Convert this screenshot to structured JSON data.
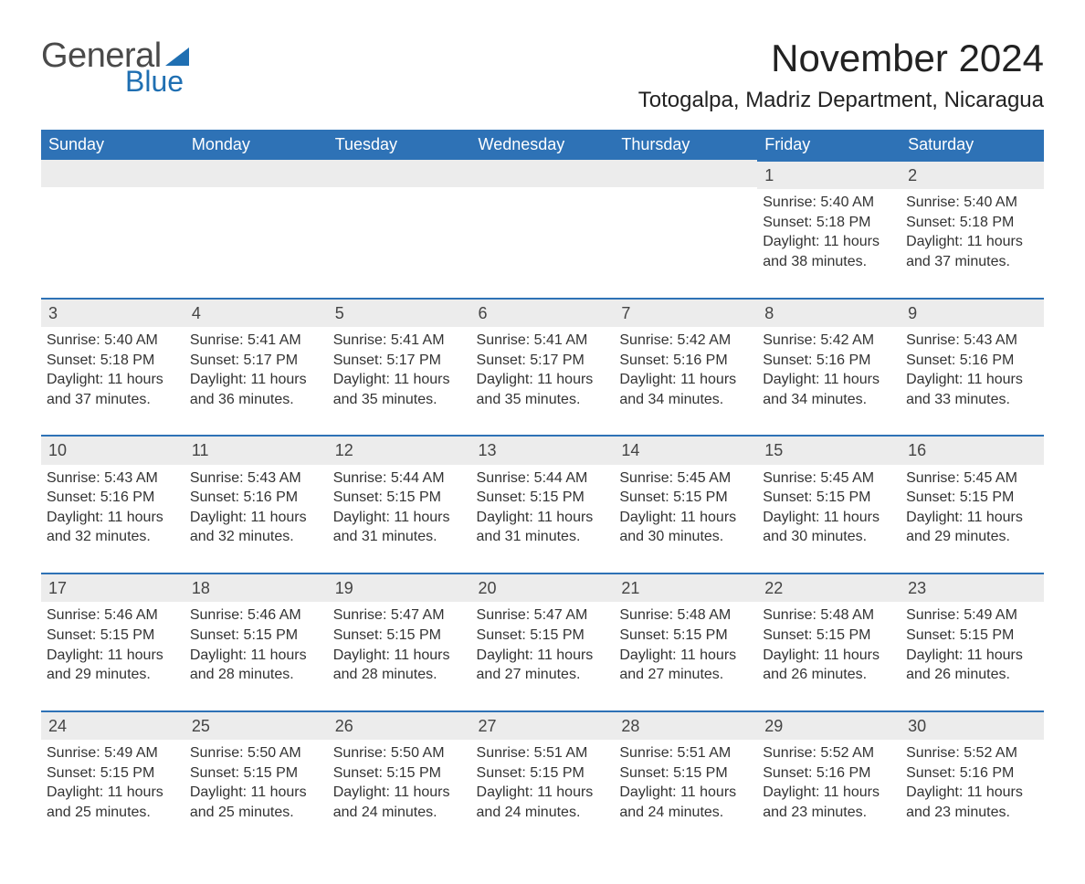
{
  "brand": {
    "text1": "General",
    "text2": "Blue",
    "flag_color": "#1f6fb2"
  },
  "title": "November 2024",
  "location": "Totogalpa, Madriz Department, Nicaragua",
  "colors": {
    "header_bg": "#2e72b6",
    "header_text": "#ffffff",
    "daynum_bg": "#ececec",
    "daynum_border": "#2e72b6",
    "body_text": "#333333",
    "page_bg": "#ffffff"
  },
  "day_headers": [
    "Sunday",
    "Monday",
    "Tuesday",
    "Wednesday",
    "Thursday",
    "Friday",
    "Saturday"
  ],
  "weeks": [
    [
      {
        "day": null
      },
      {
        "day": null
      },
      {
        "day": null
      },
      {
        "day": null
      },
      {
        "day": null
      },
      {
        "day": "1",
        "sunrise": "Sunrise: 5:40 AM",
        "sunset": "Sunset: 5:18 PM",
        "daylight1": "Daylight: 11 hours",
        "daylight2": "and 38 minutes."
      },
      {
        "day": "2",
        "sunrise": "Sunrise: 5:40 AM",
        "sunset": "Sunset: 5:18 PM",
        "daylight1": "Daylight: 11 hours",
        "daylight2": "and 37 minutes."
      }
    ],
    [
      {
        "day": "3",
        "sunrise": "Sunrise: 5:40 AM",
        "sunset": "Sunset: 5:18 PM",
        "daylight1": "Daylight: 11 hours",
        "daylight2": "and 37 minutes."
      },
      {
        "day": "4",
        "sunrise": "Sunrise: 5:41 AM",
        "sunset": "Sunset: 5:17 PM",
        "daylight1": "Daylight: 11 hours",
        "daylight2": "and 36 minutes."
      },
      {
        "day": "5",
        "sunrise": "Sunrise: 5:41 AM",
        "sunset": "Sunset: 5:17 PM",
        "daylight1": "Daylight: 11 hours",
        "daylight2": "and 35 minutes."
      },
      {
        "day": "6",
        "sunrise": "Sunrise: 5:41 AM",
        "sunset": "Sunset: 5:17 PM",
        "daylight1": "Daylight: 11 hours",
        "daylight2": "and 35 minutes."
      },
      {
        "day": "7",
        "sunrise": "Sunrise: 5:42 AM",
        "sunset": "Sunset: 5:16 PM",
        "daylight1": "Daylight: 11 hours",
        "daylight2": "and 34 minutes."
      },
      {
        "day": "8",
        "sunrise": "Sunrise: 5:42 AM",
        "sunset": "Sunset: 5:16 PM",
        "daylight1": "Daylight: 11 hours",
        "daylight2": "and 34 minutes."
      },
      {
        "day": "9",
        "sunrise": "Sunrise: 5:43 AM",
        "sunset": "Sunset: 5:16 PM",
        "daylight1": "Daylight: 11 hours",
        "daylight2": "and 33 minutes."
      }
    ],
    [
      {
        "day": "10",
        "sunrise": "Sunrise: 5:43 AM",
        "sunset": "Sunset: 5:16 PM",
        "daylight1": "Daylight: 11 hours",
        "daylight2": "and 32 minutes."
      },
      {
        "day": "11",
        "sunrise": "Sunrise: 5:43 AM",
        "sunset": "Sunset: 5:16 PM",
        "daylight1": "Daylight: 11 hours",
        "daylight2": "and 32 minutes."
      },
      {
        "day": "12",
        "sunrise": "Sunrise: 5:44 AM",
        "sunset": "Sunset: 5:15 PM",
        "daylight1": "Daylight: 11 hours",
        "daylight2": "and 31 minutes."
      },
      {
        "day": "13",
        "sunrise": "Sunrise: 5:44 AM",
        "sunset": "Sunset: 5:15 PM",
        "daylight1": "Daylight: 11 hours",
        "daylight2": "and 31 minutes."
      },
      {
        "day": "14",
        "sunrise": "Sunrise: 5:45 AM",
        "sunset": "Sunset: 5:15 PM",
        "daylight1": "Daylight: 11 hours",
        "daylight2": "and 30 minutes."
      },
      {
        "day": "15",
        "sunrise": "Sunrise: 5:45 AM",
        "sunset": "Sunset: 5:15 PM",
        "daylight1": "Daylight: 11 hours",
        "daylight2": "and 30 minutes."
      },
      {
        "day": "16",
        "sunrise": "Sunrise: 5:45 AM",
        "sunset": "Sunset: 5:15 PM",
        "daylight1": "Daylight: 11 hours",
        "daylight2": "and 29 minutes."
      }
    ],
    [
      {
        "day": "17",
        "sunrise": "Sunrise: 5:46 AM",
        "sunset": "Sunset: 5:15 PM",
        "daylight1": "Daylight: 11 hours",
        "daylight2": "and 29 minutes."
      },
      {
        "day": "18",
        "sunrise": "Sunrise: 5:46 AM",
        "sunset": "Sunset: 5:15 PM",
        "daylight1": "Daylight: 11 hours",
        "daylight2": "and 28 minutes."
      },
      {
        "day": "19",
        "sunrise": "Sunrise: 5:47 AM",
        "sunset": "Sunset: 5:15 PM",
        "daylight1": "Daylight: 11 hours",
        "daylight2": "and 28 minutes."
      },
      {
        "day": "20",
        "sunrise": "Sunrise: 5:47 AM",
        "sunset": "Sunset: 5:15 PM",
        "daylight1": "Daylight: 11 hours",
        "daylight2": "and 27 minutes."
      },
      {
        "day": "21",
        "sunrise": "Sunrise: 5:48 AM",
        "sunset": "Sunset: 5:15 PM",
        "daylight1": "Daylight: 11 hours",
        "daylight2": "and 27 minutes."
      },
      {
        "day": "22",
        "sunrise": "Sunrise: 5:48 AM",
        "sunset": "Sunset: 5:15 PM",
        "daylight1": "Daylight: 11 hours",
        "daylight2": "and 26 minutes."
      },
      {
        "day": "23",
        "sunrise": "Sunrise: 5:49 AM",
        "sunset": "Sunset: 5:15 PM",
        "daylight1": "Daylight: 11 hours",
        "daylight2": "and 26 minutes."
      }
    ],
    [
      {
        "day": "24",
        "sunrise": "Sunrise: 5:49 AM",
        "sunset": "Sunset: 5:15 PM",
        "daylight1": "Daylight: 11 hours",
        "daylight2": "and 25 minutes."
      },
      {
        "day": "25",
        "sunrise": "Sunrise: 5:50 AM",
        "sunset": "Sunset: 5:15 PM",
        "daylight1": "Daylight: 11 hours",
        "daylight2": "and 25 minutes."
      },
      {
        "day": "26",
        "sunrise": "Sunrise: 5:50 AM",
        "sunset": "Sunset: 5:15 PM",
        "daylight1": "Daylight: 11 hours",
        "daylight2": "and 24 minutes."
      },
      {
        "day": "27",
        "sunrise": "Sunrise: 5:51 AM",
        "sunset": "Sunset: 5:15 PM",
        "daylight1": "Daylight: 11 hours",
        "daylight2": "and 24 minutes."
      },
      {
        "day": "28",
        "sunrise": "Sunrise: 5:51 AM",
        "sunset": "Sunset: 5:15 PM",
        "daylight1": "Daylight: 11 hours",
        "daylight2": "and 24 minutes."
      },
      {
        "day": "29",
        "sunrise": "Sunrise: 5:52 AM",
        "sunset": "Sunset: 5:16 PM",
        "daylight1": "Daylight: 11 hours",
        "daylight2": "and 23 minutes."
      },
      {
        "day": "30",
        "sunrise": "Sunrise: 5:52 AM",
        "sunset": "Sunset: 5:16 PM",
        "daylight1": "Daylight: 11 hours",
        "daylight2": "and 23 minutes."
      }
    ]
  ]
}
